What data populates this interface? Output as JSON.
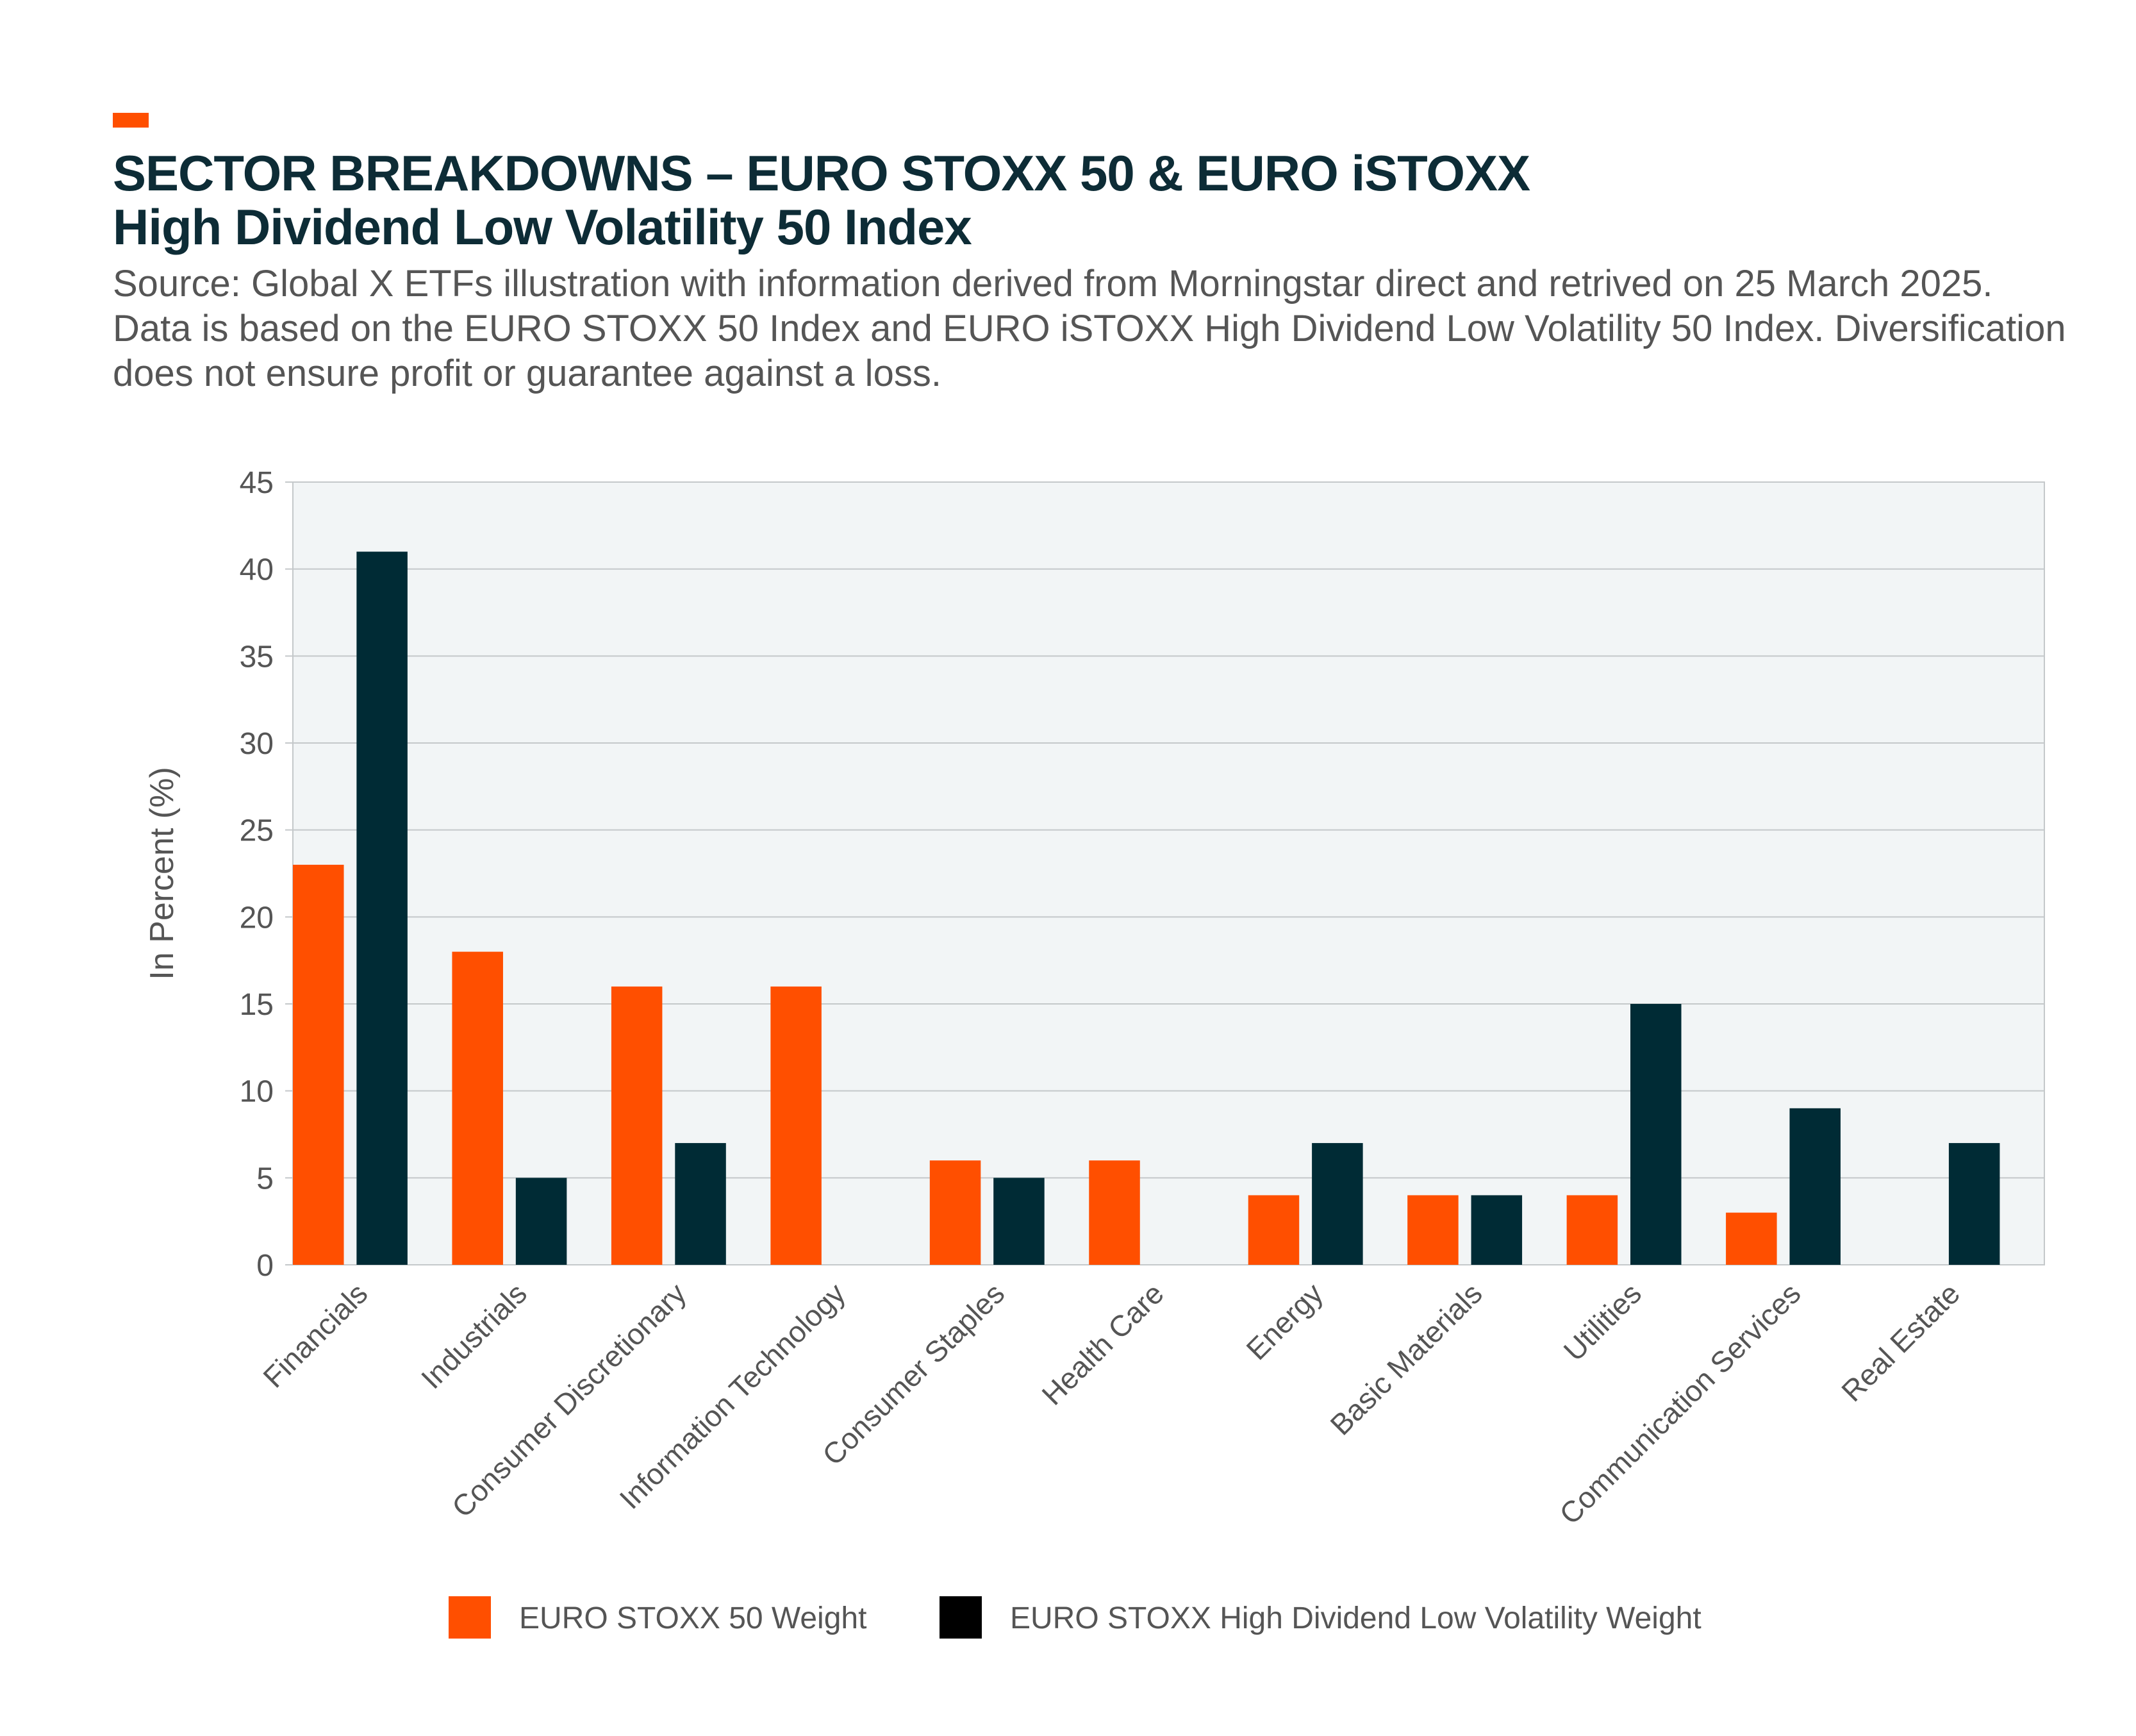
{
  "header": {
    "title_line1": "SECTOR BREAKDOWNS – EURO STOXX 50 & EURO iSTOXX",
    "title_line2": "High Dividend Low Volatility 50 Index",
    "source": "Source: Global X ETFs  illustration with information derived from Morningstar direct and retrived on 25 March 2025. Data is based on the EURO STOXX 50 Index and EURO iSTOXX High Dividend Low Volatility 50 Index. Diversification does not ensure profit or guarantee against a loss."
  },
  "colors": {
    "accent": "#ff4f00",
    "series1": "#ff4f00",
    "series2": "#002b35",
    "plot_bg": "#f2f5f6",
    "grid": "#c4c8ca",
    "axis_text": "#555555",
    "title": "#0d2c36"
  },
  "chart_data": {
    "type": "bar",
    "title": "SECTOR BREAKDOWNS – EURO STOXX 50 & EURO iSTOXX High Dividend Low Volatility 50 Index",
    "xlabel": "",
    "ylabel": "In Percent (%)",
    "ylim": [
      0,
      45
    ],
    "yticks": [
      0,
      5,
      10,
      15,
      20,
      25,
      30,
      35,
      40,
      45
    ],
    "grid": true,
    "legend_position": "bottom",
    "categories": [
      "Financials",
      "Industrials",
      "Consumer Discretionary",
      "Information Technology",
      "Consumer Staples",
      "Health Care",
      "Energy",
      "Basic Materials",
      "Utilities",
      "Communication Services",
      "Real Estate"
    ],
    "series": [
      {
        "name": "EURO STOXX 50 Weight",
        "values": [
          23,
          18,
          16,
          16,
          6,
          6,
          4,
          4,
          4,
          3,
          0
        ]
      },
      {
        "name": "EURO STOXX High Dividend Low Volatility Weight",
        "values": [
          41,
          5,
          7,
          0,
          5,
          0,
          7,
          4,
          15,
          9,
          7
        ]
      }
    ]
  }
}
